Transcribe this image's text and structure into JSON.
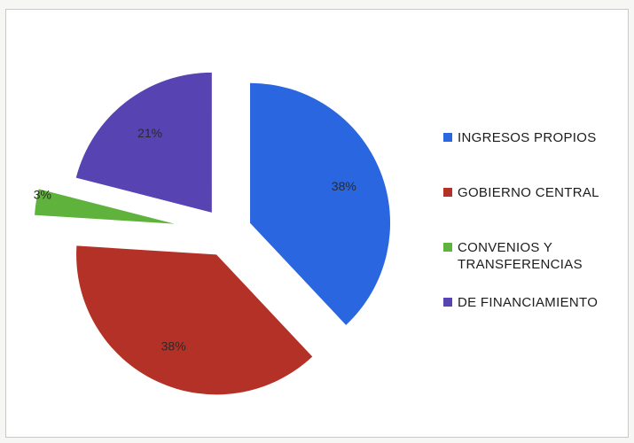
{
  "chart_data": {
    "type": "pie",
    "slices": [
      {
        "label": "INGRESOS PROPIOS",
        "value": 38,
        "display": "38%",
        "color": "#2a66df"
      },
      {
        "label": "GOBIERNO CENTRAL",
        "value": 38,
        "display": "38%",
        "color": "#b33126"
      },
      {
        "label": "CONVENIOS Y TRANSFERENCIAS",
        "value": 3,
        "display": "3%",
        "color": "#5fb23b"
      },
      {
        "label": "DE FINANCIAMIENTO",
        "value": 21,
        "display": "21%",
        "color": "#5843b3"
      }
    ],
    "legend_position": "right",
    "exploded": true
  }
}
